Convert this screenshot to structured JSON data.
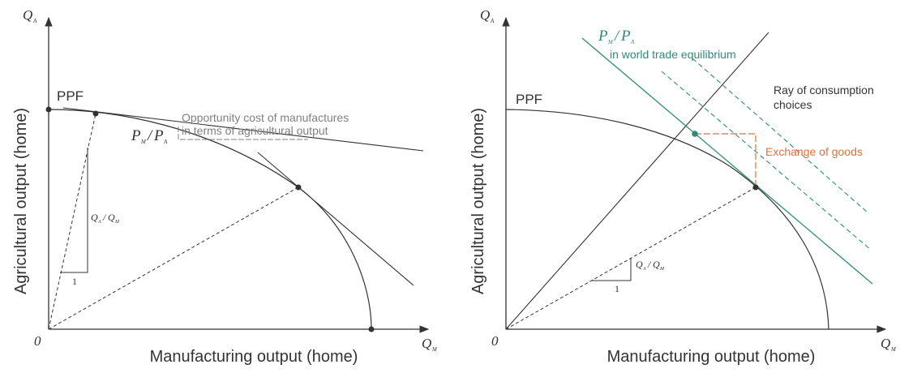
{
  "colors": {
    "ink": "#333333",
    "teal": "#2e8b7a",
    "orange": "#e0703a",
    "gray": "#808080"
  },
  "left_panel": {
    "y_axis_symbol": "Q",
    "y_axis_subscript": "A",
    "y_axis_title": "Agricultural output (home)",
    "x_axis_symbol": "Q",
    "x_axis_subscript": "M",
    "x_axis_title": "Manufacturing output (home)",
    "origin_label": "0",
    "ppf_label": "PPF",
    "opportunity_cost_line1": "Opportunity cost of manufactures",
    "opportunity_cost_line2": "in terms of agricultural output",
    "price_ratio_num": "P",
    "price_ratio_num_sub": "M",
    "price_ratio_slash": "/",
    "price_ratio_den": "P",
    "price_ratio_den_sub": "A",
    "ratio_q1": "Q",
    "ratio_q1_sub": "A",
    "ratio_slash": "/",
    "ratio_q2": "Q",
    "ratio_q2_sub": "M",
    "unit_one": "1"
  },
  "right_panel": {
    "y_axis_symbol": "Q",
    "y_axis_subscript": "A",
    "y_axis_title": "Agricultural output (home)",
    "x_axis_symbol": "Q",
    "x_axis_subscript": "M",
    "x_axis_title": "Manufacturing output (home)",
    "origin_label": "0",
    "ppf_label": "PPF",
    "world_price_num": "P",
    "world_price_num_sub": "M",
    "world_price_slash": "/",
    "world_price_den": "P",
    "world_price_den_sub": "A",
    "world_price_caption": "in world trade equilibrium",
    "ray_line1": "Ray of consumption",
    "ray_line2": "choices",
    "exchange_label": "Exchange of goods",
    "ratio_q1": "Q",
    "ratio_q1_sub": "A",
    "ratio_slash": "/",
    "ratio_q2": "Q",
    "ratio_q2_sub": "M",
    "unit_one": "1"
  }
}
